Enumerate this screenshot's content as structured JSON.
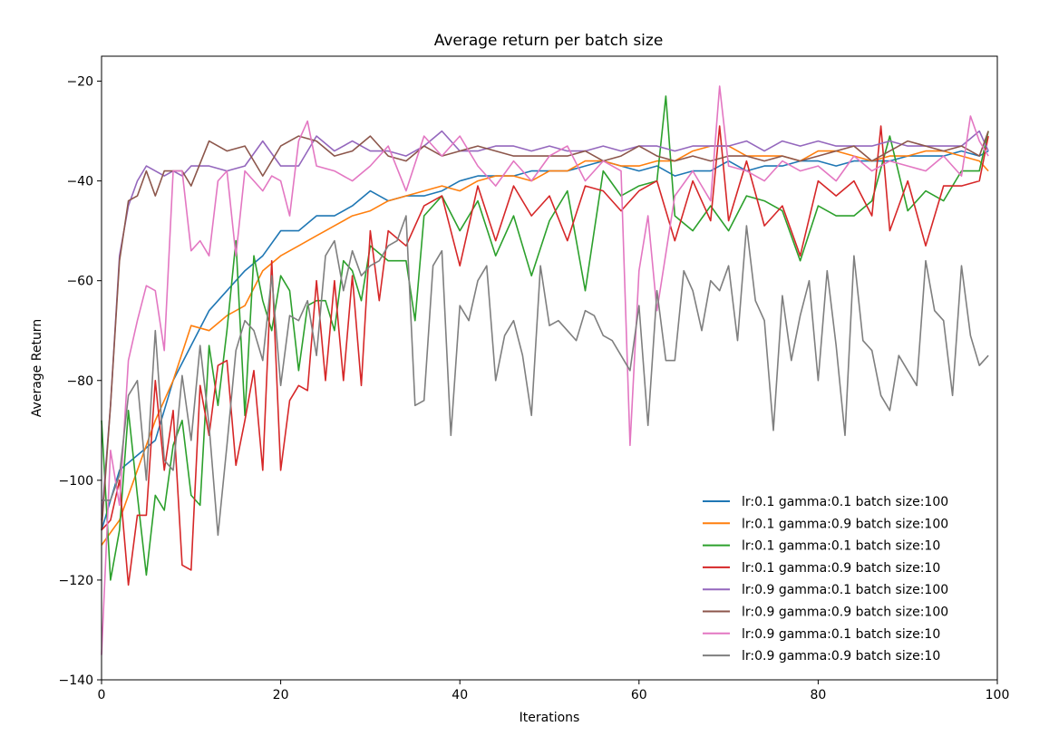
{
  "chart_data": {
    "type": "line",
    "title": "Average return per batch size",
    "xlabel": "Iterations",
    "ylabel": "Average Return",
    "xlim": [
      0,
      100
    ],
    "ylim": [
      -140,
      -15
    ],
    "xticks": [
      0,
      20,
      40,
      60,
      80,
      100
    ],
    "yticks": [
      -140,
      -120,
      -100,
      -80,
      -60,
      -40,
      -20
    ],
    "grid": false,
    "legend_position": "lower-right",
    "series": [
      {
        "name": "lr:0.1 gamma:0.1 batch size:100",
        "color": "#1f77b4",
        "x": [
          0,
          2,
          4,
          6,
          8,
          10,
          12,
          14,
          16,
          18,
          20,
          22,
          24,
          26,
          28,
          30,
          32,
          34,
          36,
          38,
          40,
          42,
          44,
          46,
          48,
          50,
          52,
          54,
          56,
          58,
          60,
          62,
          64,
          66,
          68,
          70,
          72,
          74,
          76,
          78,
          80,
          82,
          84,
          86,
          88,
          90,
          92,
          94,
          96,
          98,
          99
        ],
        "y": [
          -110,
          -98,
          -95,
          -92,
          -80,
          -73,
          -66,
          -62,
          -58,
          -55,
          -50,
          -50,
          -47,
          -47,
          -45,
          -42,
          -44,
          -43,
          -43,
          -42,
          -40,
          -39,
          -39,
          -39,
          -38,
          -38,
          -38,
          -37,
          -36,
          -37,
          -38,
          -37,
          -39,
          -38,
          -38,
          -36,
          -38,
          -37,
          -37,
          -36,
          -36,
          -37,
          -36,
          -36,
          -36,
          -35,
          -35,
          -35,
          -34,
          -35,
          -34
        ]
      },
      {
        "name": "lr:0.1 gamma:0.9 batch size:100",
        "color": "#ff7f0e",
        "x": [
          0,
          2,
          4,
          6,
          8,
          10,
          12,
          14,
          16,
          18,
          20,
          22,
          24,
          26,
          28,
          30,
          32,
          34,
          36,
          38,
          40,
          42,
          44,
          46,
          48,
          50,
          52,
          54,
          56,
          58,
          60,
          62,
          64,
          66,
          68,
          70,
          72,
          74,
          76,
          78,
          80,
          82,
          84,
          86,
          88,
          90,
          92,
          94,
          96,
          98,
          99
        ],
        "y": [
          -113,
          -108,
          -98,
          -88,
          -80,
          -69,
          -70,
          -67,
          -65,
          -58,
          -55,
          -53,
          -51,
          -49,
          -47,
          -46,
          -44,
          -43,
          -42,
          -41,
          -42,
          -40,
          -39,
          -39,
          -40,
          -38,
          -38,
          -36,
          -36,
          -37,
          -37,
          -36,
          -36,
          -34,
          -33,
          -33,
          -35,
          -35,
          -35,
          -36,
          -34,
          -34,
          -35,
          -36,
          -35,
          -35,
          -34,
          -34,
          -35,
          -36,
          -38
        ]
      },
      {
        "name": "lr:0.1 gamma:0.1 batch size:10",
        "color": "#2ca02c",
        "x": [
          0,
          1,
          2,
          3,
          4,
          5,
          6,
          7,
          8,
          9,
          10,
          11,
          12,
          13,
          14,
          15,
          16,
          17,
          18,
          19,
          20,
          21,
          22,
          23,
          24,
          25,
          26,
          27,
          28,
          29,
          30,
          32,
          34,
          35,
          36,
          38,
          40,
          42,
          44,
          46,
          48,
          50,
          52,
          54,
          56,
          58,
          60,
          62,
          63,
          64,
          66,
          68,
          70,
          72,
          74,
          76,
          78,
          80,
          82,
          84,
          86,
          88,
          90,
          92,
          94,
          96,
          98,
          99
        ],
        "y": [
          -88,
          -120,
          -110,
          -86,
          -103,
          -119,
          -103,
          -106,
          -93,
          -88,
          -103,
          -105,
          -73,
          -85,
          -70,
          -52,
          -87,
          -55,
          -64,
          -70,
          -59,
          -62,
          -78,
          -65,
          -64,
          -64,
          -70,
          -56,
          -58,
          -64,
          -53,
          -56,
          -56,
          -68,
          -47,
          -43,
          -50,
          -44,
          -55,
          -47,
          -59,
          -48,
          -42,
          -62,
          -38,
          -43,
          -41,
          -40,
          -23,
          -47,
          -50,
          -45,
          -50,
          -43,
          -44,
          -46,
          -56,
          -45,
          -47,
          -47,
          -44,
          -31,
          -46,
          -42,
          -44,
          -38,
          -38,
          -30
        ]
      },
      {
        "name": "lr:0.1 gamma:0.9 batch size:10",
        "color": "#d62728",
        "x": [
          0,
          1,
          2,
          3,
          4,
          5,
          6,
          7,
          8,
          9,
          10,
          11,
          12,
          13,
          14,
          15,
          16,
          17,
          18,
          19,
          20,
          21,
          22,
          23,
          24,
          25,
          26,
          27,
          28,
          29,
          30,
          31,
          32,
          34,
          36,
          38,
          40,
          42,
          44,
          46,
          48,
          50,
          52,
          54,
          56,
          58,
          60,
          62,
          64,
          66,
          68,
          69,
          70,
          72,
          74,
          76,
          78,
          80,
          82,
          84,
          86,
          87,
          88,
          90,
          92,
          94,
          96,
          98,
          99
        ],
        "y": [
          -110,
          -108,
          -100,
          -121,
          -107,
          -107,
          -80,
          -98,
          -86,
          -117,
          -118,
          -81,
          -91,
          -77,
          -76,
          -97,
          -88,
          -78,
          -98,
          -56,
          -98,
          -84,
          -81,
          -82,
          -60,
          -80,
          -60,
          -80,
          -59,
          -81,
          -50,
          -64,
          -50,
          -53,
          -45,
          -43,
          -57,
          -41,
          -52,
          -41,
          -47,
          -43,
          -52,
          -41,
          -42,
          -46,
          -42,
          -40,
          -52,
          -40,
          -48,
          -29,
          -48,
          -36,
          -49,
          -45,
          -55,
          -40,
          -43,
          -40,
          -47,
          -29,
          -50,
          -40,
          -53,
          -41,
          -41,
          -40,
          -31
        ]
      },
      {
        "name": "lr:0.9 gamma:0.1 batch size:100",
        "color": "#9467bd",
        "x": [
          0,
          1,
          2,
          3,
          4,
          5,
          6,
          7,
          8,
          9,
          10,
          12,
          14,
          16,
          18,
          20,
          22,
          24,
          26,
          28,
          30,
          32,
          34,
          36,
          38,
          40,
          42,
          44,
          46,
          48,
          50,
          52,
          54,
          56,
          58,
          60,
          62,
          64,
          66,
          68,
          70,
          72,
          74,
          76,
          78,
          80,
          82,
          84,
          86,
          88,
          90,
          92,
          94,
          96,
          98,
          99
        ],
        "y": [
          -108,
          -85,
          -55,
          -45,
          -40,
          -37,
          -38,
          -39,
          -38,
          -39,
          -37,
          -37,
          -38,
          -37,
          -32,
          -37,
          -37,
          -31,
          -34,
          -32,
          -34,
          -34,
          -35,
          -33,
          -30,
          -34,
          -34,
          -33,
          -33,
          -34,
          -33,
          -34,
          -34,
          -33,
          -34,
          -33,
          -33,
          -34,
          -33,
          -33,
          -33,
          -32,
          -34,
          -32,
          -33,
          -32,
          -33,
          -33,
          -33,
          -32,
          -33,
          -33,
          -33,
          -33,
          -30,
          -34
        ]
      },
      {
        "name": "lr:0.9 gamma:0.9 batch size:100",
        "color": "#8c564b",
        "x": [
          0,
          1,
          2,
          3,
          4,
          5,
          6,
          7,
          8,
          9,
          10,
          12,
          14,
          16,
          18,
          20,
          22,
          24,
          26,
          28,
          30,
          32,
          34,
          36,
          38,
          40,
          42,
          44,
          46,
          48,
          50,
          52,
          54,
          56,
          58,
          60,
          62,
          64,
          66,
          68,
          70,
          72,
          74,
          76,
          78,
          80,
          82,
          84,
          86,
          88,
          90,
          92,
          94,
          96,
          98,
          99
        ],
        "y": [
          -110,
          -85,
          -56,
          -44,
          -43,
          -38,
          -43,
          -38,
          -38,
          -38,
          -41,
          -32,
          -34,
          -33,
          -39,
          -33,
          -31,
          -32,
          -35,
          -34,
          -31,
          -35,
          -36,
          -33,
          -35,
          -34,
          -33,
          -34,
          -35,
          -35,
          -35,
          -35,
          -34,
          -36,
          -35,
          -33,
          -35,
          -36,
          -35,
          -36,
          -35,
          -35,
          -36,
          -35,
          -36,
          -35,
          -34,
          -33,
          -36,
          -34,
          -32,
          -33,
          -34,
          -33,
          -35,
          -30
        ]
      },
      {
        "name": "lr:0.9 gamma:0.1 batch size:10",
        "color": "#e377c2",
        "x": [
          0,
          1,
          2,
          3,
          4,
          5,
          6,
          7,
          8,
          9,
          10,
          11,
          12,
          13,
          14,
          15,
          16,
          17,
          18,
          19,
          20,
          21,
          22,
          23,
          24,
          26,
          28,
          30,
          32,
          34,
          36,
          38,
          40,
          42,
          44,
          46,
          48,
          50,
          52,
          54,
          56,
          58,
          59,
          60,
          61,
          62,
          64,
          66,
          68,
          69,
          70,
          72,
          74,
          76,
          78,
          80,
          82,
          84,
          86,
          88,
          90,
          92,
          94,
          96,
          97,
          98,
          99
        ],
        "y": [
          -135,
          -94,
          -105,
          -76,
          -68,
          -61,
          -62,
          -74,
          -38,
          -38,
          -54,
          -52,
          -55,
          -40,
          -38,
          -55,
          -38,
          -40,
          -42,
          -39,
          -40,
          -47,
          -32,
          -28,
          -37,
          -38,
          -40,
          -37,
          -33,
          -42,
          -31,
          -35,
          -31,
          -37,
          -41,
          -36,
          -40,
          -35,
          -33,
          -40,
          -36,
          -38,
          -93,
          -58,
          -47,
          -66,
          -43,
          -38,
          -44,
          -21,
          -37,
          -38,
          -40,
          -36,
          -38,
          -37,
          -40,
          -35,
          -38,
          -36,
          -37,
          -38,
          -35,
          -39,
          -27,
          -32,
          -35
        ]
      },
      {
        "name": "lr:0.9 gamma:0.9 batch size:10",
        "color": "#7f7f7f",
        "x": [
          0,
          1,
          2,
          3,
          4,
          5,
          6,
          7,
          8,
          9,
          10,
          11,
          12,
          13,
          14,
          15,
          16,
          17,
          18,
          19,
          20,
          21,
          22,
          23,
          24,
          25,
          26,
          27,
          28,
          29,
          30,
          31,
          32,
          33,
          34,
          35,
          36,
          37,
          38,
          39,
          40,
          41,
          42,
          43,
          44,
          45,
          46,
          47,
          48,
          49,
          50,
          51,
          52,
          53,
          54,
          55,
          56,
          57,
          58,
          59,
          60,
          61,
          62,
          63,
          64,
          65,
          66,
          67,
          68,
          69,
          70,
          71,
          72,
          73,
          74,
          75,
          76,
          77,
          78,
          79,
          80,
          81,
          82,
          83,
          84,
          85,
          86,
          87,
          88,
          89,
          90,
          91,
          92,
          93,
          94,
          95,
          96,
          97,
          98,
          99
        ],
        "y": [
          -104,
          -104,
          -99,
          -83,
          -80,
          -100,
          -70,
          -96,
          -98,
          -79,
          -92,
          -73,
          -89,
          -111,
          -93,
          -74,
          -68,
          -70,
          -76,
          -59,
          -81,
          -67,
          -68,
          -64,
          -75,
          -55,
          -52,
          -62,
          -54,
          -59,
          -57,
          -56,
          -53,
          -52,
          -47,
          -85,
          -84,
          -57,
          -54,
          -91,
          -65,
          -68,
          -60,
          -57,
          -80,
          -71,
          -68,
          -75,
          -87,
          -57,
          -69,
          -68,
          -70,
          -72,
          -66,
          -67,
          -71,
          -72,
          -75,
          -78,
          -65,
          -89,
          -62,
          -76,
          -76,
          -58,
          -62,
          -70,
          -60,
          -62,
          -57,
          -72,
          -49,
          -64,
          -68,
          -90,
          -63,
          -76,
          -67,
          -60,
          -80,
          -58,
          -73,
          -91,
          -55,
          -72,
          -74,
          -83,
          -86,
          -75,
          -78,
          -81,
          -56,
          -66,
          -68,
          -83,
          -57,
          -71,
          -77,
          -75
        ]
      }
    ]
  }
}
